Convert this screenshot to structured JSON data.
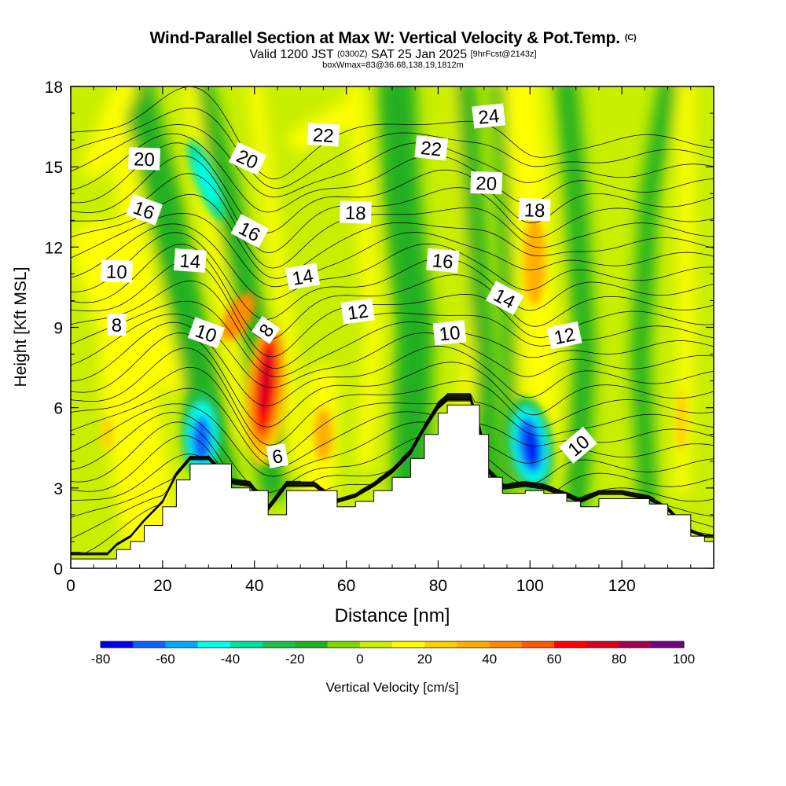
{
  "header": {
    "title": "Wind-Parallel Section at Max W: Vertical Velocity & Pot.Temp.",
    "title_mark": "(C)",
    "valid_prefix": "Valid 1200 JST",
    "valid_utc": "(0300Z)",
    "valid_date": "SAT 25 Jan 2025",
    "forecast": "[9hrFcst@2143z]",
    "boxwmax": "boxWmax=83@36.68,138.19,1812m"
  },
  "chart_data": {
    "type": "heatmap",
    "title": "Wind-Parallel Section at Max W: Vertical Velocity & Pot.Temp.",
    "xlabel": "Distance [nm]",
    "ylabel": "Height [Kft MSL]",
    "xlim": [
      0,
      140
    ],
    "ylim": [
      0,
      18
    ],
    "x_ticks": [
      "0",
      "20",
      "40",
      "60",
      "80",
      "100",
      "120"
    ],
    "y_ticks": [
      "0",
      "3",
      "6",
      "9",
      "12",
      "15",
      "18"
    ],
    "colorbar": {
      "label": "Vertical Velocity [cm/s]",
      "tick_labels": [
        "-80",
        "-60",
        "-40",
        "-20",
        "0",
        "20",
        "40",
        "60",
        "80",
        "100"
      ],
      "levels": [
        -80,
        -70,
        -60,
        -50,
        -40,
        -30,
        -20,
        -10,
        0,
        10,
        20,
        30,
        40,
        50,
        60,
        70,
        80,
        90,
        100
      ],
      "colors": [
        "#0000ee",
        "#1060ff",
        "#00a8ff",
        "#00ffee",
        "#00e0a0",
        "#20c050",
        "#20b020",
        "#7ed800",
        "#c8ee00",
        "#ffff00",
        "#ffd000",
        "#ffb000",
        "#ff8c00",
        "#ff5a00",
        "#ff0000",
        "#d80020",
        "#a00050",
        "#700080"
      ]
    },
    "terrain": [
      [
        0,
        0.35
      ],
      [
        8,
        0.35
      ],
      [
        10,
        0.7
      ],
      [
        13,
        1.0
      ],
      [
        16,
        1.6
      ],
      [
        20,
        2.3
      ],
      [
        23,
        3.3
      ],
      [
        26,
        3.9
      ],
      [
        30,
        3.9
      ],
      [
        35,
        3.0
      ],
      [
        39,
        2.9
      ],
      [
        43,
        2.0
      ],
      [
        47,
        2.9
      ],
      [
        53,
        2.9
      ],
      [
        58,
        2.3
      ],
      [
        62,
        2.5
      ],
      [
        66,
        2.9
      ],
      [
        70,
        3.4
      ],
      [
        74,
        4.1
      ],
      [
        77,
        5.0
      ],
      [
        80,
        5.8
      ],
      [
        82,
        6.1
      ],
      [
        87,
        6.1
      ],
      [
        89,
        5.0
      ],
      [
        91,
        3.4
      ],
      [
        94,
        2.8
      ],
      [
        99,
        2.9
      ],
      [
        103,
        2.8
      ],
      [
        108,
        2.5
      ],
      [
        111,
        2.3
      ],
      [
        115,
        2.6
      ],
      [
        120,
        2.6
      ],
      [
        126,
        2.4
      ],
      [
        130,
        2.0
      ],
      [
        135,
        1.2
      ],
      [
        138,
        1.0
      ],
      [
        140,
        1.0
      ]
    ],
    "vertical_velocity_features": [
      {
        "x": 100,
        "height": 4.5,
        "value": -83
      },
      {
        "x": 28.5,
        "height": 4.8,
        "value": -62
      },
      {
        "x": 42.5,
        "height": 6.8,
        "value": 70
      },
      {
        "x": 36,
        "height": 9.5,
        "value": 45
      },
      {
        "x": 101,
        "height": 11.5,
        "value": 35
      },
      {
        "x": 30,
        "height": 14.5,
        "value": -35
      },
      {
        "x": 55,
        "height": 5.0,
        "value": 35
      },
      {
        "x": 133,
        "height": 5.5,
        "value": 25
      }
    ],
    "potential_temperature_labels": [
      {
        "text": "24",
        "x": 91,
        "height": 16.9
      },
      {
        "text": "22",
        "x": 55,
        "height": 16.2
      },
      {
        "text": "22",
        "x": 78.5,
        "height": 15.7
      },
      {
        "text": "20",
        "x": 16,
        "height": 15.3
      },
      {
        "text": "20",
        "x": 38.5,
        "height": 15.3
      },
      {
        "text": "20",
        "x": 90.5,
        "height": 14.4
      },
      {
        "text": "18",
        "x": 62,
        "height": 13.3
      },
      {
        "text": "18",
        "x": 101,
        "height": 13.4
      },
      {
        "text": "16",
        "x": 16,
        "height": 13.4
      },
      {
        "text": "16",
        "x": 39,
        "height": 12.6
      },
      {
        "text": "16",
        "x": 81,
        "height": 11.5
      },
      {
        "text": "14",
        "x": 26,
        "height": 11.5
      },
      {
        "text": "14",
        "x": 50.5,
        "height": 10.9
      },
      {
        "text": "14",
        "x": 94.5,
        "height": 10.1
      },
      {
        "text": "12",
        "x": 62.5,
        "height": 9.6
      },
      {
        "text": "12",
        "x": 107.5,
        "height": 8.7
      },
      {
        "text": "10",
        "x": 10,
        "height": 11.1
      },
      {
        "text": "10",
        "x": 29.5,
        "height": 8.8
      },
      {
        "text": "10",
        "x": 82.5,
        "height": 8.8
      },
      {
        "text": "10",
        "x": 110.5,
        "height": 4.6
      },
      {
        "text": "8",
        "x": 10,
        "height": 9.1
      },
      {
        "text": "8",
        "x": 42.5,
        "height": 8.9
      },
      {
        "text": "6",
        "x": 45,
        "height": 4.2
      }
    ]
  }
}
